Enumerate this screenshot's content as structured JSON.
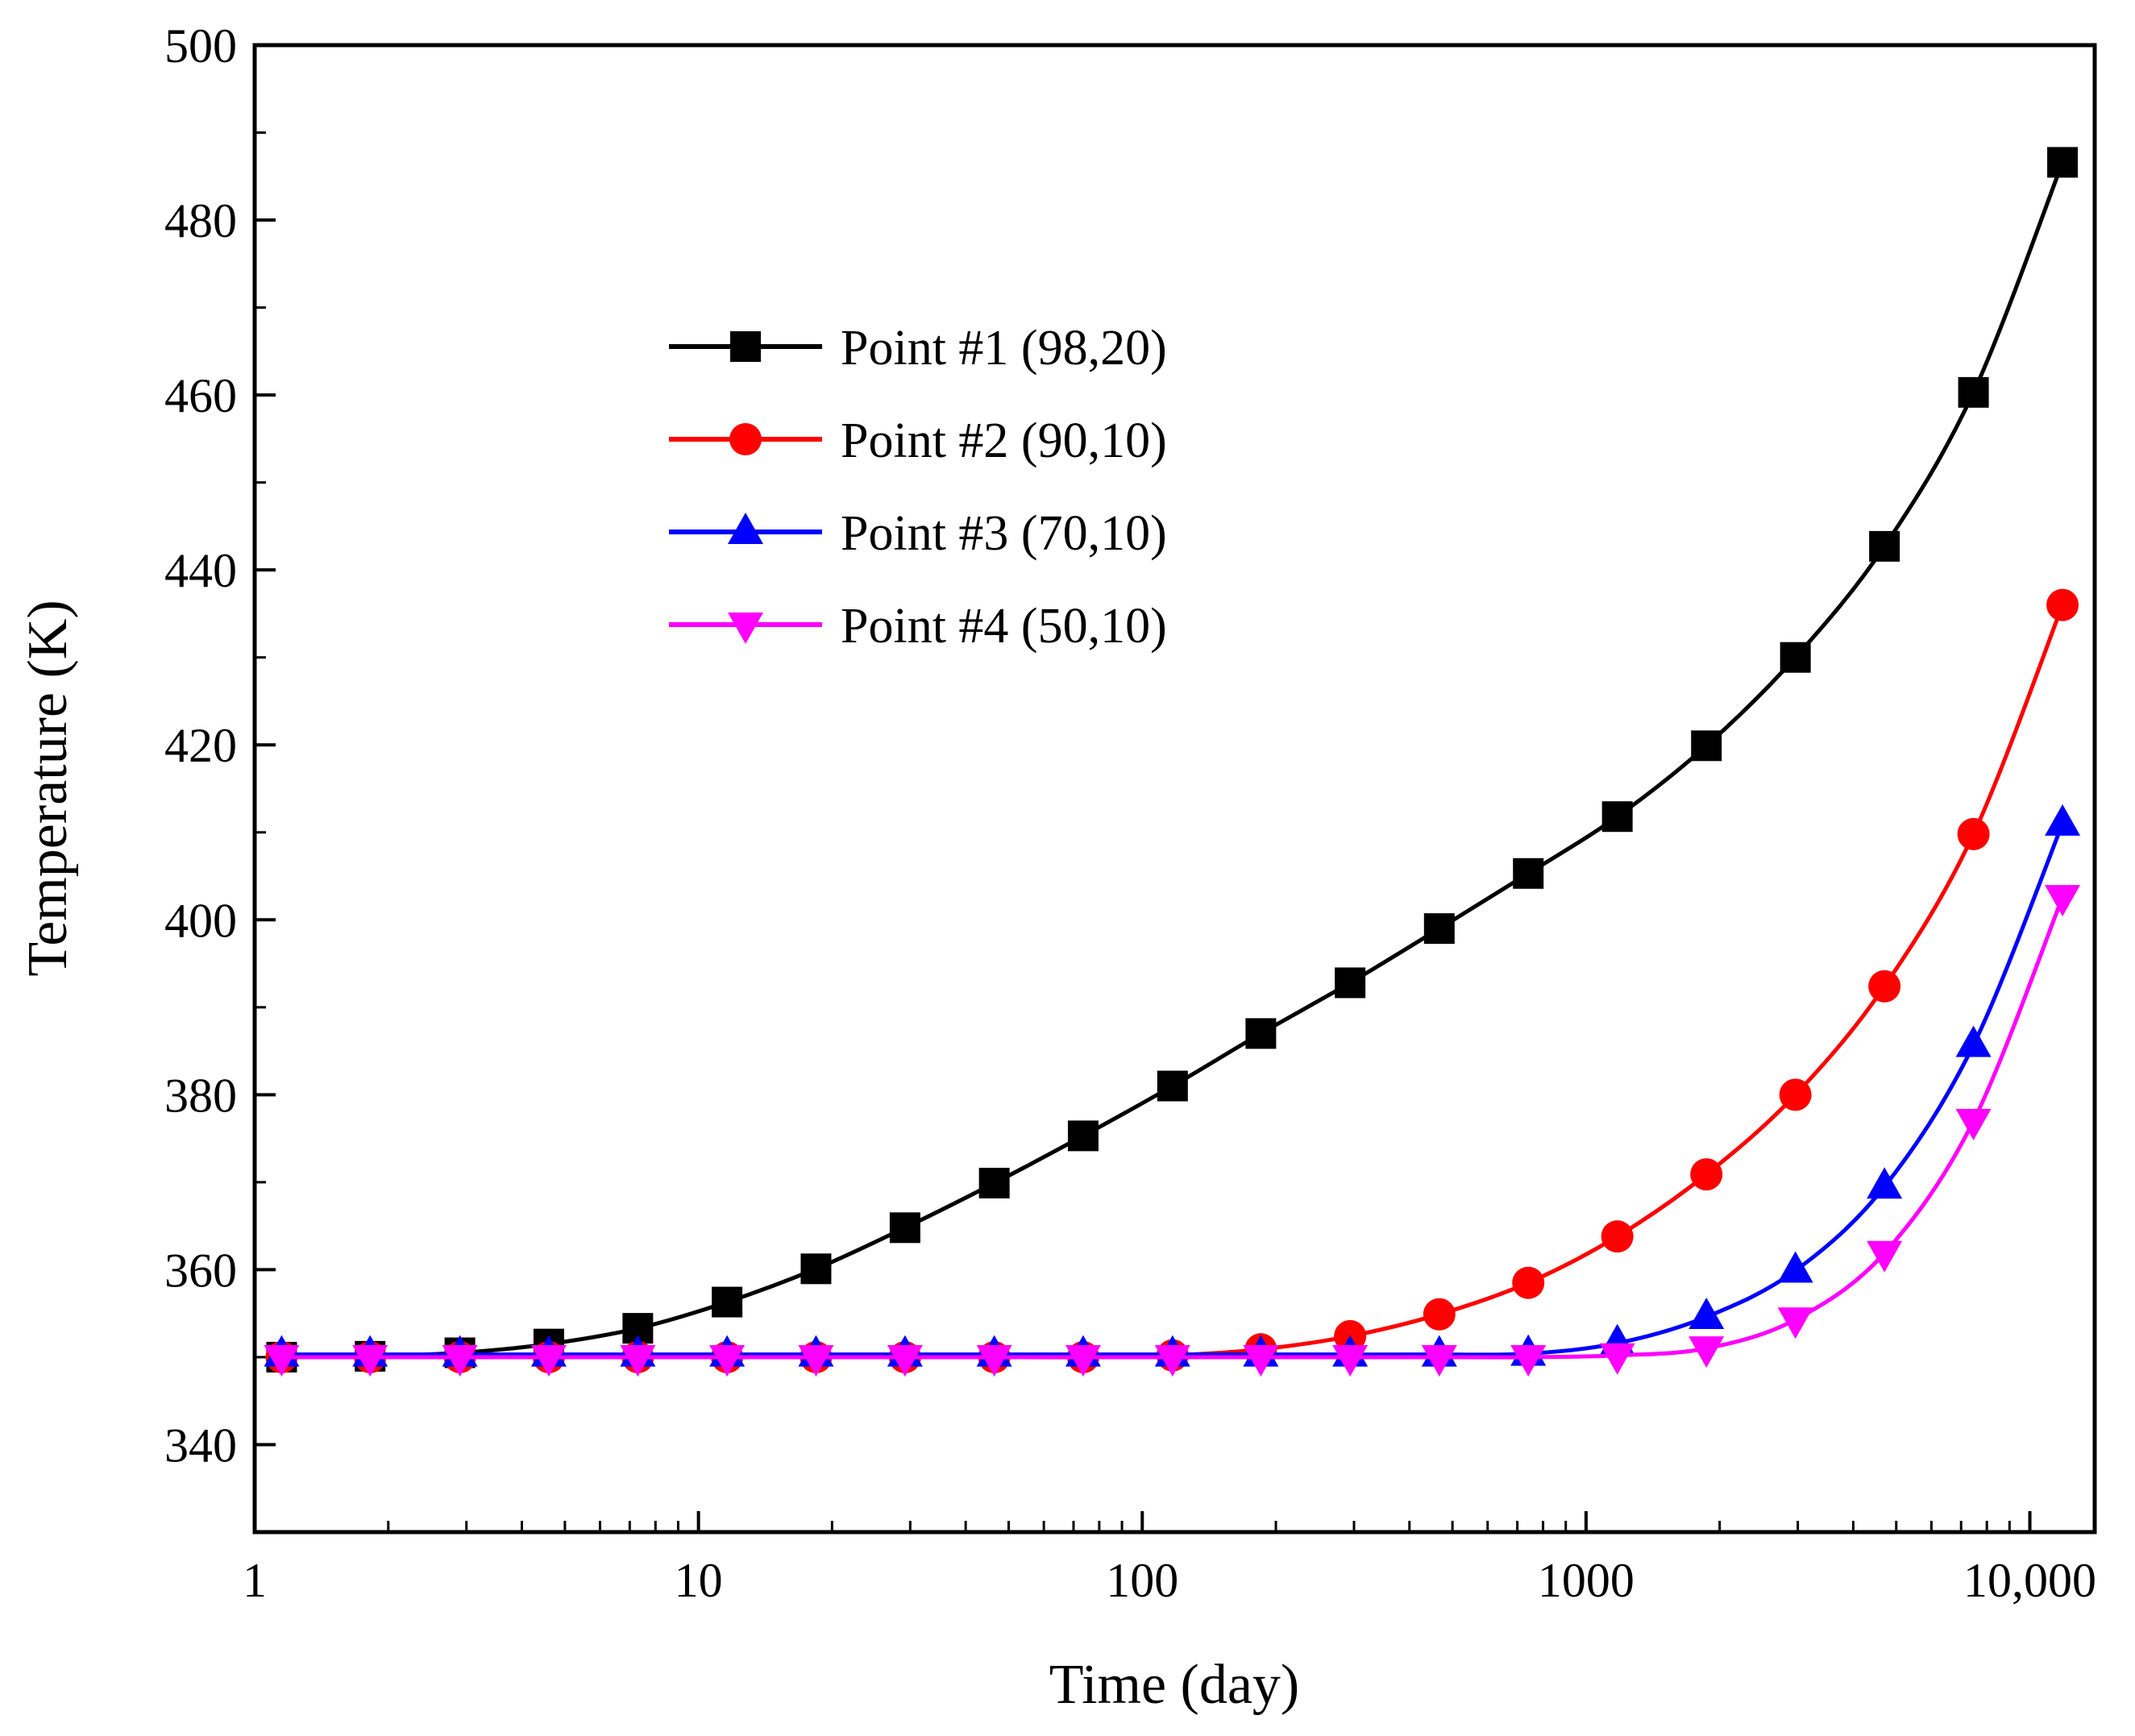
{
  "chart_data": {
    "type": "line",
    "xscale": "log",
    "xlabel": "Time (day)",
    "ylabel": "Temperature (K)",
    "xlim": [
      1,
      14000
    ],
    "ylim": [
      330,
      500
    ],
    "xticks": [
      1,
      10,
      100,
      1000,
      10000
    ],
    "xtick_labels": [
      "1",
      "10",
      "100",
      "1000",
      "10,000"
    ],
    "yticks": [
      340,
      360,
      380,
      400,
      420,
      440,
      460,
      480,
      500
    ],
    "ytick_labels": [
      "340",
      "360",
      "380",
      "400",
      "420",
      "440",
      "460",
      "480",
      "500"
    ],
    "legend_position": "upper-left-center",
    "x": [
      1.15,
      1.82,
      2.9,
      4.6,
      7.3,
      11.6,
      18.4,
      29.2,
      46.4,
      73.6,
      117,
      185,
      294,
      467,
      741,
      1176,
      1867,
      2963,
      4703,
      7464,
      11847
    ],
    "series": [
      {
        "name": "Point #1 (98,20)",
        "color": "#000000",
        "marker": "square",
        "values": [
          350.0,
          350.1,
          350.5,
          351.5,
          353.3,
          356.3,
          360.1,
          364.8,
          369.9,
          375.3,
          381.0,
          387.0,
          392.8,
          399.0,
          405.3,
          411.8,
          419.9,
          430.0,
          442.7,
          460.3,
          486.6
        ]
      },
      {
        "name": "Point #2 (90,10)",
        "color": "#ff0000",
        "marker": "circle",
        "values": [
          350.0,
          350.0,
          350.0,
          350.0,
          350.0,
          350.0,
          350.0,
          350.0,
          350.0,
          350.0,
          350.2,
          350.9,
          352.4,
          354.9,
          358.5,
          363.8,
          370.9,
          380.0,
          392.4,
          409.8,
          436.0
        ]
      },
      {
        "name": "Point #3 (70,10)",
        "color": "#0000ff",
        "marker": "triangle-up",
        "values": [
          350.3,
          350.3,
          350.3,
          350.3,
          350.3,
          350.3,
          350.3,
          350.3,
          350.3,
          350.3,
          350.3,
          350.3,
          350.3,
          350.3,
          350.4,
          351.6,
          354.6,
          359.9,
          369.5,
          385.7,
          411.0
        ]
      },
      {
        "name": "Point #4 (50,10)",
        "color": "#ff00ff",
        "marker": "triangle-down",
        "values": [
          350.0,
          350.0,
          350.0,
          350.0,
          350.0,
          350.0,
          350.0,
          350.0,
          350.0,
          350.0,
          350.0,
          350.0,
          350.0,
          350.0,
          350.0,
          350.2,
          351.0,
          354.3,
          361.9,
          377.0,
          402.6
        ]
      }
    ]
  }
}
